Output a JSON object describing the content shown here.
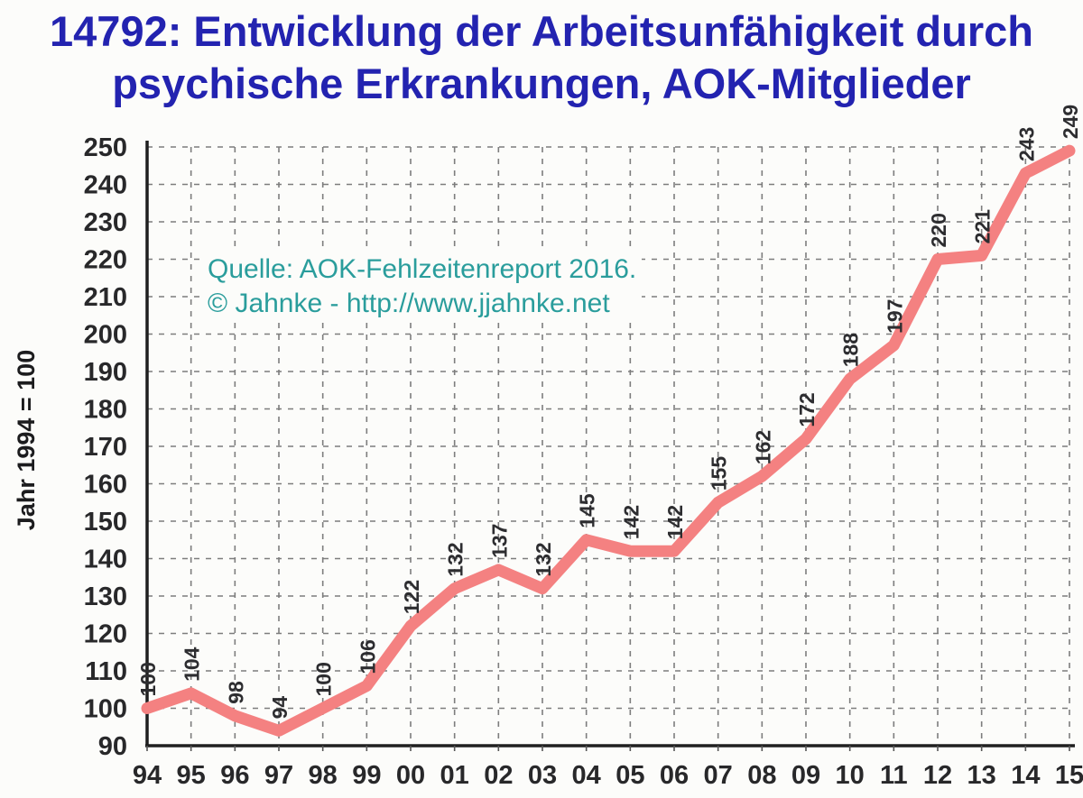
{
  "page": {
    "title_line1": "14792: Entwicklung der Arbeitsunfähigkeit durch",
    "title_line2": "psychische Erkrankungen, AOK-Mitglieder",
    "title_color": "#2323b0"
  },
  "annotation": {
    "line1": "Quelle: AOK-Fehlzeitenreport 2016.",
    "line2": "© Jahnke - http://www.jjahnke.net",
    "color": "#2a9d9c"
  },
  "chart_data": {
    "type": "line",
    "title": "14792: Entwicklung der Arbeitsunfähigkeit durch psychische Erkrankungen, AOK-Mitglieder",
    "categories": [
      "94",
      "95",
      "96",
      "97",
      "98",
      "99",
      "00",
      "01",
      "02",
      "03",
      "04",
      "05",
      "06",
      "07",
      "08",
      "09",
      "10",
      "11",
      "12",
      "13",
      "14",
      "15"
    ],
    "values": [
      100,
      104,
      98,
      94,
      100,
      106,
      122,
      132,
      137,
      132,
      145,
      142,
      142,
      155,
      162,
      172,
      188,
      197,
      220,
      221,
      243,
      249
    ],
    "xlabel": "",
    "ylabel": "Jahr 1994 = 100",
    "ylim": [
      90,
      250
    ],
    "ytick_step": 10,
    "grid": true,
    "grid_style": "dashed",
    "legend": "none",
    "line_color": "#f48181",
    "grid_color": "#7d7d7d",
    "axis_color": "#1f1f1f",
    "annotation_text": "Quelle: AOK-Fehlzeitenreport 2016. © Jahnke - http://www.jjahnke.net"
  }
}
